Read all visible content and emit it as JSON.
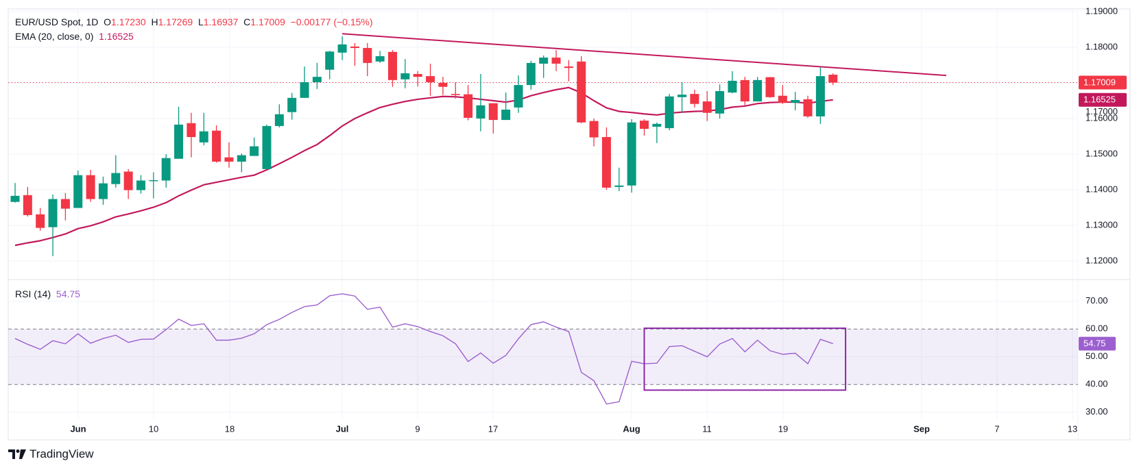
{
  "header": {
    "symbol": "EUR/USD Spot, 1D",
    "open_label": "O",
    "open": "1.17230",
    "high_label": "H",
    "high": "1.17269",
    "low_label": "L",
    "low": "1.16937",
    "close_label": "C",
    "close": "1.17009",
    "change": "−0.00177 (−0.15%)",
    "ema_label": "EMA (20, close, 0)",
    "ema_value": "1.16525",
    "rsi_label": "RSI (14)",
    "rsi_value": "54.75"
  },
  "branding": {
    "name": "TradingView"
  },
  "colors": {
    "up": "#089981",
    "down": "#f23645",
    "ema": "#c2185b",
    "trendline": "#c2185b",
    "rsi": "#9c5fcf",
    "rsi_band": "#7e57c2",
    "box": "#8e24aa",
    "grid": "#f0f3fa",
    "text": "#131722"
  },
  "chart_data": [
    {
      "type": "candlestick",
      "title": "EUR/USD Spot, 1D",
      "candle_fields": [
        "date",
        "open",
        "high",
        "low",
        "close"
      ],
      "candles": [
        [
          "2025-05-26",
          1.1366,
          1.1419,
          1.1364,
          1.1383
        ],
        [
          "2025-05-27",
          1.1385,
          1.1408,
          1.1325,
          1.1329
        ],
        [
          "2025-05-28",
          1.1331,
          1.1349,
          1.1285,
          1.1293
        ],
        [
          "2025-05-29",
          1.1295,
          1.1387,
          1.1214,
          1.1374
        ],
        [
          "2025-05-30",
          1.1374,
          1.1391,
          1.1314,
          1.1347
        ],
        [
          "2025-06-02",
          1.1349,
          1.1454,
          1.1349,
          1.1441
        ],
        [
          "2025-06-03",
          1.1441,
          1.1456,
          1.1366,
          1.1374
        ],
        [
          "2025-06-04",
          1.1374,
          1.1437,
          1.1358,
          1.1418
        ],
        [
          "2025-06-05",
          1.1416,
          1.1497,
          1.1406,
          1.1447
        ],
        [
          "2025-06-06",
          1.1451,
          1.1458,
          1.1374,
          1.1399
        ],
        [
          "2025-06-09",
          1.1399,
          1.1441,
          1.1389,
          1.1426
        ],
        [
          "2025-06-10",
          1.1425,
          1.1449,
          1.1376,
          1.1427
        ],
        [
          "2025-06-11",
          1.1426,
          1.15,
          1.1406,
          1.1489
        ],
        [
          "2025-06-12",
          1.1487,
          1.1633,
          1.1487,
          1.1583
        ],
        [
          "2025-06-13",
          1.1587,
          1.1616,
          1.1491,
          1.1548
        ],
        [
          "2025-06-16",
          1.1533,
          1.1616,
          1.1525,
          1.1564
        ],
        [
          "2025-06-17",
          1.1566,
          1.1581,
          1.1476,
          1.1479
        ],
        [
          "2025-06-18",
          1.1491,
          1.1533,
          1.1462,
          1.1479
        ],
        [
          "2025-06-19",
          1.1479,
          1.1502,
          1.1449,
          1.1497
        ],
        [
          "2025-06-20",
          1.1495,
          1.1547,
          1.1495,
          1.1522
        ],
        [
          "2025-06-23",
          1.1458,
          1.1583,
          1.1458,
          1.1579
        ],
        [
          "2025-06-24",
          1.1579,
          1.164,
          1.1575,
          1.1612
        ],
        [
          "2025-06-25",
          1.1618,
          1.1672,
          1.1597,
          1.1658
        ],
        [
          "2025-06-26",
          1.1658,
          1.1746,
          1.1658,
          1.1702
        ],
        [
          "2025-06-27",
          1.1702,
          1.1756,
          1.1683,
          1.1717
        ],
        [
          "2025-06-30",
          1.1737,
          1.179,
          1.171,
          1.1788
        ],
        [
          "2025-07-01",
          1.1785,
          1.1831,
          1.1764,
          1.1808
        ],
        [
          "2025-07-02",
          1.1802,
          1.1812,
          1.1748,
          1.1798
        ],
        [
          "2025-07-03",
          1.1798,
          1.1812,
          1.1719,
          1.1756
        ],
        [
          "2025-07-04",
          1.176,
          1.179,
          1.1756,
          1.1775
        ],
        [
          "2025-07-07",
          1.1787,
          1.1792,
          1.1689,
          1.1708
        ],
        [
          "2025-07-08",
          1.171,
          1.1767,
          1.1685,
          1.1727
        ],
        [
          "2025-07-09",
          1.1725,
          1.1733,
          1.169,
          1.1717
        ],
        [
          "2025-07-10",
          1.1719,
          1.1754,
          1.1664,
          1.1702
        ],
        [
          "2025-07-11",
          1.17,
          1.1717,
          1.1666,
          1.1689
        ],
        [
          "2025-07-14",
          1.1669,
          1.1702,
          1.1656,
          1.1666
        ],
        [
          "2025-07-15",
          1.1668,
          1.1694,
          1.1595,
          1.1602
        ],
        [
          "2025-07-16",
          1.16,
          1.1725,
          1.1564,
          1.1637
        ],
        [
          "2025-07-17",
          1.1643,
          1.1643,
          1.1558,
          1.1596
        ],
        [
          "2025-07-18",
          1.1596,
          1.1673,
          1.1596,
          1.1625
        ],
        [
          "2025-07-21",
          1.1631,
          1.1721,
          1.1616,
          1.1694
        ],
        [
          "2025-07-22",
          1.1694,
          1.1762,
          1.1681,
          1.1756
        ],
        [
          "2025-07-23",
          1.1754,
          1.1777,
          1.1714,
          1.1771
        ],
        [
          "2025-07-24",
          1.1771,
          1.1792,
          1.1733,
          1.1754
        ],
        [
          "2025-07-25",
          1.1746,
          1.1764,
          1.1704,
          1.1742
        ],
        [
          "2025-07-28",
          1.176,
          1.1775,
          1.1587,
          1.1589
        ],
        [
          "2025-07-29",
          1.1593,
          1.16,
          1.1522,
          1.1547
        ],
        [
          "2025-07-30",
          1.1548,
          1.1575,
          1.14,
          1.1406
        ],
        [
          "2025-07-31",
          1.1408,
          1.1462,
          1.1396,
          1.1412
        ],
        [
          "2025-08-01",
          1.1412,
          1.1598,
          1.1392,
          1.1589
        ],
        [
          "2025-08-04",
          1.1594,
          1.1598,
          1.1552,
          1.1571
        ],
        [
          "2025-08-05",
          1.1577,
          1.1589,
          1.1531,
          1.1585
        ],
        [
          "2025-08-06",
          1.1573,
          1.1669,
          1.1567,
          1.1662
        ],
        [
          "2025-08-07",
          1.166,
          1.1702,
          1.1616,
          1.1667
        ],
        [
          "2025-08-08",
          1.1669,
          1.1681,
          1.1631,
          1.1641
        ],
        [
          "2025-08-11",
          1.1648,
          1.1677,
          1.1593,
          1.1616
        ],
        [
          "2025-08-12",
          1.1614,
          1.1696,
          1.16,
          1.1677
        ],
        [
          "2025-08-13",
          1.1673,
          1.1733,
          1.1671,
          1.1706
        ],
        [
          "2025-08-14",
          1.1708,
          1.1717,
          1.1637,
          1.1648
        ],
        [
          "2025-08-15",
          1.1648,
          1.1717,
          1.1648,
          1.1708
        ],
        [
          "2025-08-18",
          1.1716,
          1.1717,
          1.1658,
          1.166
        ],
        [
          "2025-08-19",
          1.1664,
          1.1694,
          1.1641,
          1.1644
        ],
        [
          "2025-08-20",
          1.1644,
          1.1675,
          1.1623,
          1.1652
        ],
        [
          "2025-08-21",
          1.1654,
          1.1664,
          1.1602,
          1.1606
        ],
        [
          "2025-08-22",
          1.1606,
          1.1744,
          1.1585,
          1.1719
        ],
        [
          "2025-08-25",
          1.1723,
          1.17269,
          1.16937,
          1.17009
        ]
      ],
      "ema20": [
        1.1244,
        1.1251,
        1.1257,
        1.1266,
        1.1276,
        1.1291,
        1.1299,
        1.131,
        1.1324,
        1.1332,
        1.1341,
        1.1351,
        1.1364,
        1.1383,
        1.1399,
        1.1414,
        1.1421,
        1.1428,
        1.1435,
        1.1441,
        1.1456,
        1.1473,
        1.1491,
        1.151,
        1.1527,
        1.1552,
        1.1579,
        1.16,
        1.1616,
        1.1631,
        1.164,
        1.1648,
        1.1654,
        1.1658,
        1.1662,
        1.1661,
        1.1658,
        1.1654,
        1.165,
        1.1646,
        1.1652,
        1.1664,
        1.1673,
        1.1681,
        1.1687,
        1.1672,
        1.165,
        1.163,
        1.162,
        1.1617,
        1.1613,
        1.161,
        1.1615,
        1.1618,
        1.162,
        1.1621,
        1.1625,
        1.1632,
        1.1635,
        1.1642,
        1.1645,
        1.1646,
        1.1646,
        1.1643,
        1.1648,
        1.16525
      ],
      "trendline": {
        "start": {
          "date": "2025-07-01",
          "price": 1.1838
        },
        "end": {
          "date": "2025-09-05",
          "price": 1.1721
        }
      },
      "last_price": {
        "value": 1.17009,
        "label": "1.17009"
      },
      "ema_last": {
        "value": 1.16525,
        "label": "1.16525"
      },
      "y_ticks": [
        "1.19000",
        "1.18000",
        "1.17000",
        "1.16000",
        "1.15000",
        "1.14000",
        "1.13000",
        "1.12000"
      ],
      "ylim": [
        1.1137,
        1.1915
      ],
      "x_ticks": [
        {
          "label": "Jun",
          "bold": true
        },
        {
          "label": "10"
        },
        {
          "label": "18"
        },
        {
          "label": "Jul",
          "bold": true
        },
        {
          "label": "9"
        },
        {
          "label": "17"
        },
        {
          "label": "Aug",
          "bold": true
        },
        {
          "label": "11"
        },
        {
          "label": "19"
        },
        {
          "label": "Sep",
          "bold": true
        },
        {
          "label": "7"
        },
        {
          "label": "13"
        }
      ],
      "grid": true
    },
    {
      "type": "line",
      "title": "RSI (14)",
      "values": [
        56.6,
        54.5,
        52.7,
        55.8,
        54.7,
        58.3,
        54.9,
        56.6,
        57.8,
        55.2,
        56.3,
        56.4,
        59.8,
        63.6,
        61.3,
        61.9,
        56.0,
        56.0,
        56.7,
        58.3,
        61.6,
        63.5,
        66.0,
        68.1,
        68.7,
        72.0,
        72.7,
        71.9,
        67.1,
        67.9,
        60.7,
        61.9,
        60.9,
        59.1,
        57.6,
        54.7,
        48.3,
        51.4,
        47.7,
        50.5,
        56.5,
        61.6,
        62.6,
        60.7,
        59.1,
        44.4,
        41.4,
        33.0,
        33.8,
        48.4,
        47.5,
        47.7,
        53.7,
        54.0,
        52.0,
        50.0,
        54.6,
        56.6,
        51.8,
        56.0,
        52.2,
        50.9,
        51.3,
        47.5,
        56.3,
        54.75
      ],
      "band": [
        40,
        60
      ],
      "last": {
        "value": 54.75,
        "label": "54.75"
      },
      "y_ticks": [
        "70.00",
        "60.00",
        "50.00",
        "40.00",
        "30.00"
      ],
      "box": {
        "from": "2025-08-04",
        "to": "2025-08-26",
        "top": 60.3,
        "bottom": 38.0
      }
    }
  ]
}
